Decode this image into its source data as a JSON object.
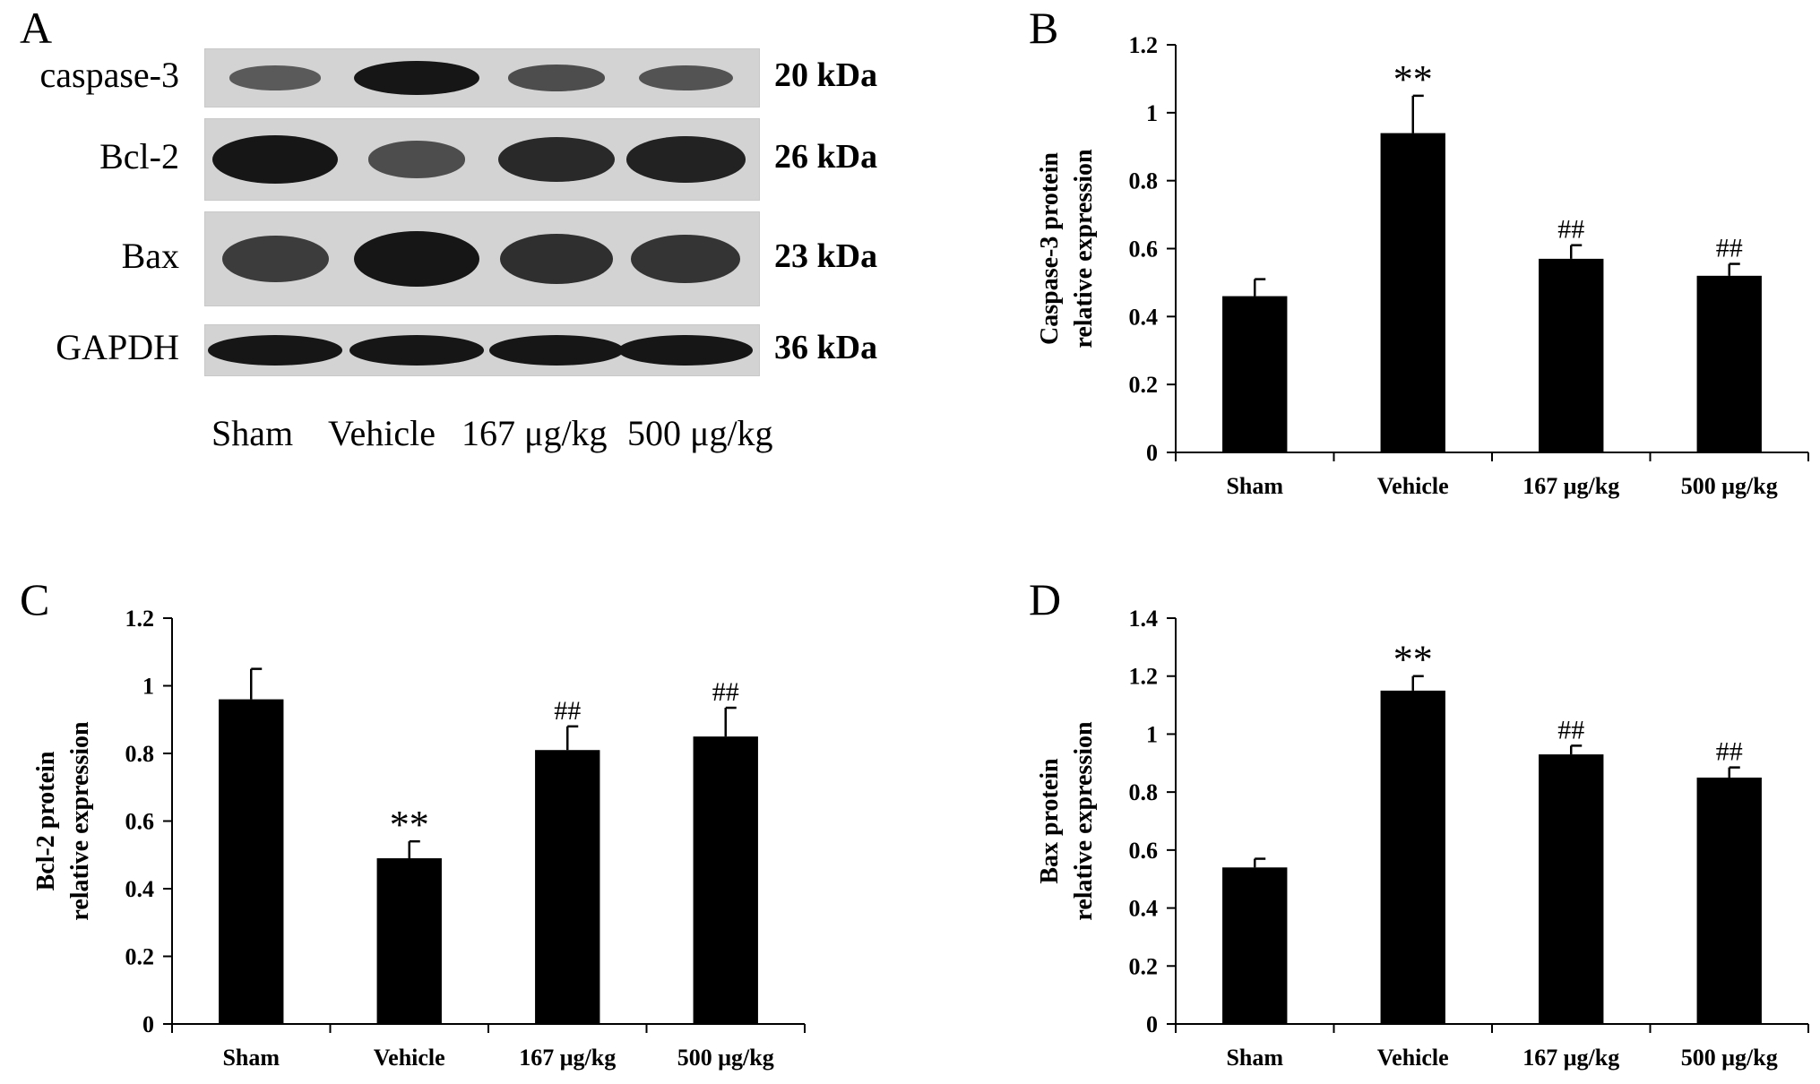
{
  "panel_labels": {
    "a": "A",
    "b": "B",
    "c": "C",
    "d": "D"
  },
  "blot": {
    "rows": [
      {
        "protein": "caspase-3",
        "kda": "20 kDa",
        "intensity": [
          0.45,
          1.0,
          0.55,
          0.5
        ]
      },
      {
        "protein": "Bcl-2",
        "kda": "26 kDa",
        "intensity": [
          1.0,
          0.55,
          0.85,
          0.9
        ]
      },
      {
        "protein": "Bax",
        "kda": "23 kDa",
        "intensity": [
          0.7,
          1.0,
          0.8,
          0.75
        ]
      },
      {
        "protein": "GAPDH",
        "kda": "36 kDa",
        "intensity": [
          1.0,
          1.0,
          1.0,
          1.0
        ]
      }
    ],
    "lanes": [
      "Sham",
      "Vehicle",
      "167 μg/kg",
      "500 μg/kg"
    ]
  },
  "chart_data": [
    {
      "panel": "B",
      "type": "bar",
      "categories": [
        "Sham",
        "Vehicle",
        "167 μg/kg",
        "500 μg/kg"
      ],
      "values": [
        0.46,
        0.94,
        0.57,
        0.52
      ],
      "errors": [
        0.05,
        0.11,
        0.04,
        0.035
      ],
      "annotations": [
        "",
        "**",
        "##",
        "##"
      ],
      "ylabel": [
        "Caspase-3 protein",
        "relative expression"
      ],
      "ylim": [
        0,
        1.2
      ],
      "yticks": [
        0,
        0.2,
        0.4,
        0.6,
        0.8,
        1,
        1.2
      ],
      "ytick_labels": [
        "0",
        "0.2",
        "0.4",
        "0.6",
        "0.8",
        "1",
        "1.2"
      ],
      "grid": false,
      "bar_color": "#000000"
    },
    {
      "panel": "C",
      "type": "bar",
      "categories": [
        "Sham",
        "Vehicle",
        "167 μg/kg",
        "500 μg/kg"
      ],
      "values": [
        0.96,
        0.49,
        0.81,
        0.85
      ],
      "errors": [
        0.09,
        0.05,
        0.07,
        0.085
      ],
      "annotations": [
        "",
        "**",
        "##",
        "##"
      ],
      "ylabel": [
        "Bcl-2 protein",
        "relative expression"
      ],
      "ylim": [
        0,
        1.2
      ],
      "yticks": [
        0,
        0.2,
        0.4,
        0.6,
        0.8,
        1,
        1.2
      ],
      "ytick_labels": [
        "0",
        "0.2",
        "0.4",
        "0.6",
        "0.8",
        "1",
        "1.2"
      ],
      "grid": false,
      "bar_color": "#000000"
    },
    {
      "panel": "D",
      "type": "bar",
      "categories": [
        "Sham",
        "Vehicle",
        "167 μg/kg",
        "500 μg/kg"
      ],
      "values": [
        0.54,
        1.15,
        0.93,
        0.85
      ],
      "errors": [
        0.03,
        0.05,
        0.03,
        0.035
      ],
      "annotations": [
        "",
        "**",
        "##",
        "##"
      ],
      "ylabel": [
        "Bax protein",
        "relative expression"
      ],
      "ylim": [
        0,
        1.4
      ],
      "yticks": [
        0,
        0.2,
        0.4,
        0.6,
        0.8,
        1,
        1.2,
        1.4
      ],
      "ytick_labels": [
        "0",
        "0.2",
        "0.4",
        "0.6",
        "0.8",
        "1",
        "1.2",
        "1.4"
      ],
      "grid": false,
      "bar_color": "#000000"
    }
  ]
}
